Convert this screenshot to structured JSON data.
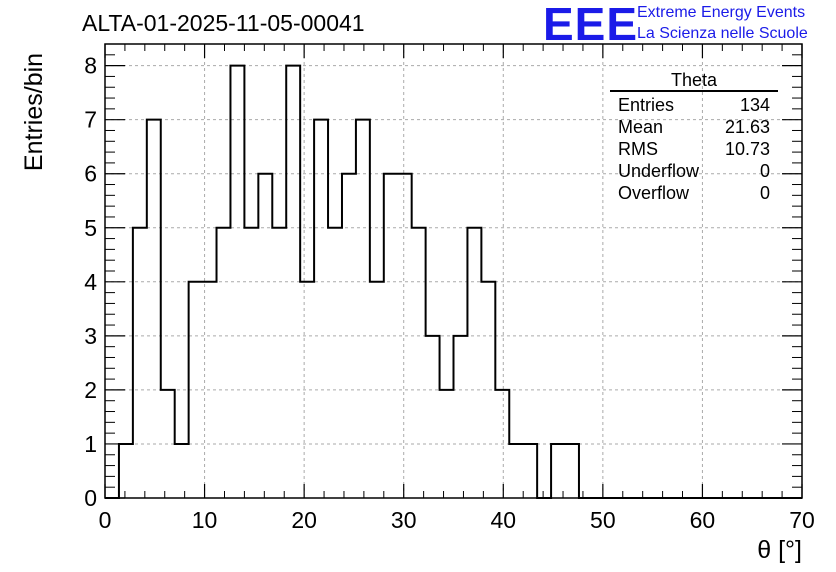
{
  "header": {
    "title": "ALTA-01-2025-11-05-00041",
    "logo_text": "EEE",
    "logo_line1": "Extreme Energy Events",
    "logo_line2": "La Scienza nelle Scuole"
  },
  "stats": {
    "title": "Theta",
    "rows": [
      {
        "label": "Entries",
        "value": "134"
      },
      {
        "label": "Mean",
        "value": "21.63"
      },
      {
        "label": "RMS",
        "value": "10.73"
      },
      {
        "label": "Underflow",
        "value": "0"
      },
      {
        "label": "Overflow",
        "value": "0"
      }
    ]
  },
  "chart_data": {
    "type": "histogram",
    "title": "ALTA-01-2025-11-05-00041",
    "xlabel": "θ [°]",
    "ylabel": "Entries/bin",
    "xlim": [
      0,
      70
    ],
    "ylim": [
      0,
      8.4
    ],
    "bin_width": 1.4,
    "bin_start": 0,
    "values": [
      0,
      1,
      5,
      7,
      2,
      1,
      4,
      4,
      5,
      8,
      5,
      6,
      5,
      8,
      4,
      7,
      5,
      6,
      7,
      4,
      6,
      6,
      5,
      3,
      2,
      3,
      5,
      4,
      2,
      1,
      1,
      0,
      1,
      1,
      0,
      0,
      0,
      0,
      0,
      0,
      0,
      0,
      0,
      0,
      0,
      0,
      0,
      0,
      0,
      0
    ],
    "x_ticks": [
      0,
      10,
      20,
      30,
      40,
      50,
      60,
      70
    ],
    "y_ticks": [
      0,
      1,
      2,
      3,
      4,
      5,
      6,
      7,
      8
    ],
    "grid": true,
    "line_color": "#000000",
    "grid_color": "#aaaaaa"
  },
  "colors": {
    "logo": "#1b1be8"
  }
}
